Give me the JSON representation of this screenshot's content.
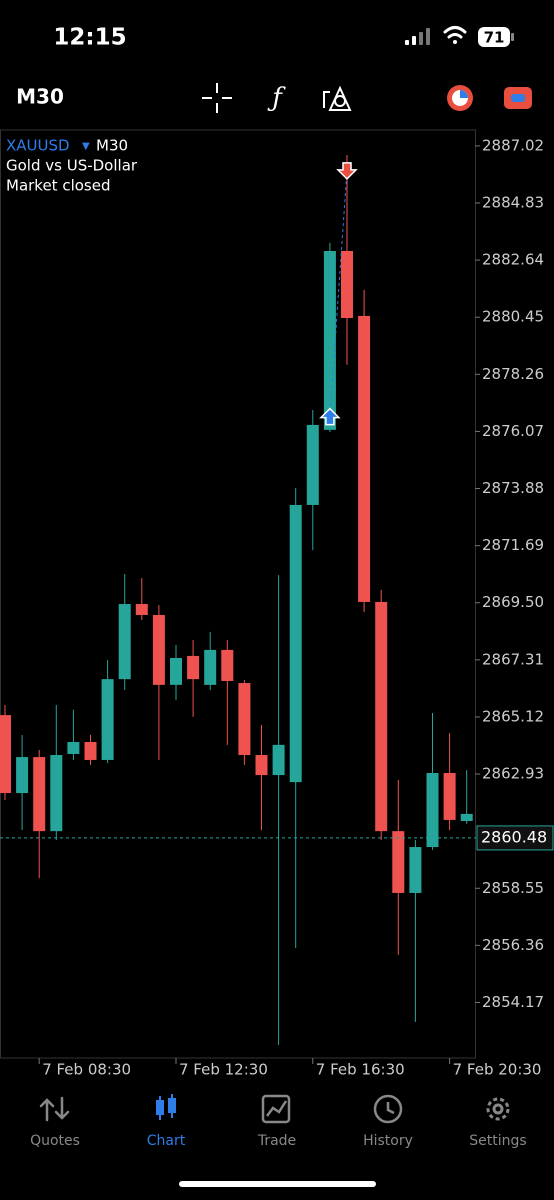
{
  "status_bar": {
    "time": "12:15",
    "battery": "71"
  },
  "toolbar": {
    "timeframe": "M30"
  },
  "chart_data": {
    "type": "candlestick",
    "symbol": "XAUUSD",
    "timeframe": "M30",
    "description": "Gold vs US-Dollar",
    "status": "Market closed",
    "categories": [
      null,
      null,
      "7 Feb 08:30",
      null,
      null,
      null,
      null,
      null,
      null,
      null,
      "7 Feb 12:30",
      null,
      null,
      null,
      null,
      null,
      null,
      null,
      "7 Feb 16:30",
      null,
      null,
      null,
      null,
      null,
      null,
      null,
      "7 Feb 20:30",
      null
    ],
    "open": [
      2865.19,
      2862.2,
      2863.58,
      2860.74,
      2863.7,
      2864.16,
      2863.47,
      2866.57,
      2869.45,
      2869.03,
      2866.35,
      2867.46,
      2866.35,
      2867.69,
      2866.42,
      2863.66,
      2862.89,
      2862.62,
      2873.25,
      2876.13,
      2882.99,
      2880.5,
      2869.53,
      2860.74,
      2858.37,
      2860.13,
      2862.97,
      2861.13
    ],
    "high": [
      2865.58,
      2864.43,
      2863.85,
      2865.58,
      2865.4,
      2864.43,
      2867.3,
      2870.6,
      2870.45,
      2869.41,
      2867.88,
      2868.07,
      2868.38,
      2868.07,
      2866.53,
      2864.81,
      2870.56,
      2873.9,
      2876.89,
      2883.3,
      2886.67,
      2881.5,
      2870.0,
      2862.7,
      2860.4,
      2865.27,
      2864.5,
      2863.08
    ],
    "low": [
      2861.93,
      2860.78,
      2858.94,
      2860.4,
      2863.47,
      2863.28,
      2863.35,
      2866.15,
      2868.84,
      2863.47,
      2865.77,
      2865.12,
      2866.15,
      2864.05,
      2863.28,
      2860.78,
      2852.54,
      2856.26,
      2871.52,
      2876.05,
      2878.62,
      2869.14,
      2860.4,
      2855.99,
      2853.42,
      2860.02,
      2860.78,
      2861.02
    ],
    "close": [
      2862.2,
      2863.58,
      2860.74,
      2863.66,
      2864.16,
      2863.47,
      2866.57,
      2869.45,
      2869.03,
      2866.35,
      2867.38,
      2866.57,
      2867.69,
      2866.5,
      2863.66,
      2862.89,
      2864.05,
      2873.25,
      2876.32,
      2882.99,
      2880.42,
      2869.53,
      2860.74,
      2858.37,
      2860.13,
      2862.97,
      2861.17,
      2861.4
    ],
    "up_color": "#26a69a",
    "down_color": "#ef5350",
    "ylim": [
      2852.04,
      2887.63
    ],
    "yticks": [
      2887.02,
      2884.83,
      2882.64,
      2880.45,
      2878.26,
      2876.07,
      2873.88,
      2871.69,
      {
        "value": 2869.5,
        "label": "2869.50"
      },
      2867.31,
      2865.12,
      2862.93,
      2858.55,
      2856.36,
      2854.17
    ],
    "last_price": 2860.48,
    "trade": {
      "buy": 2876.6,
      "sell": 2886.1
    }
  },
  "tab_bar": {
    "tabs": [
      "Quotes",
      "Chart",
      "Trade",
      "History",
      "Settings"
    ],
    "active": 1
  }
}
